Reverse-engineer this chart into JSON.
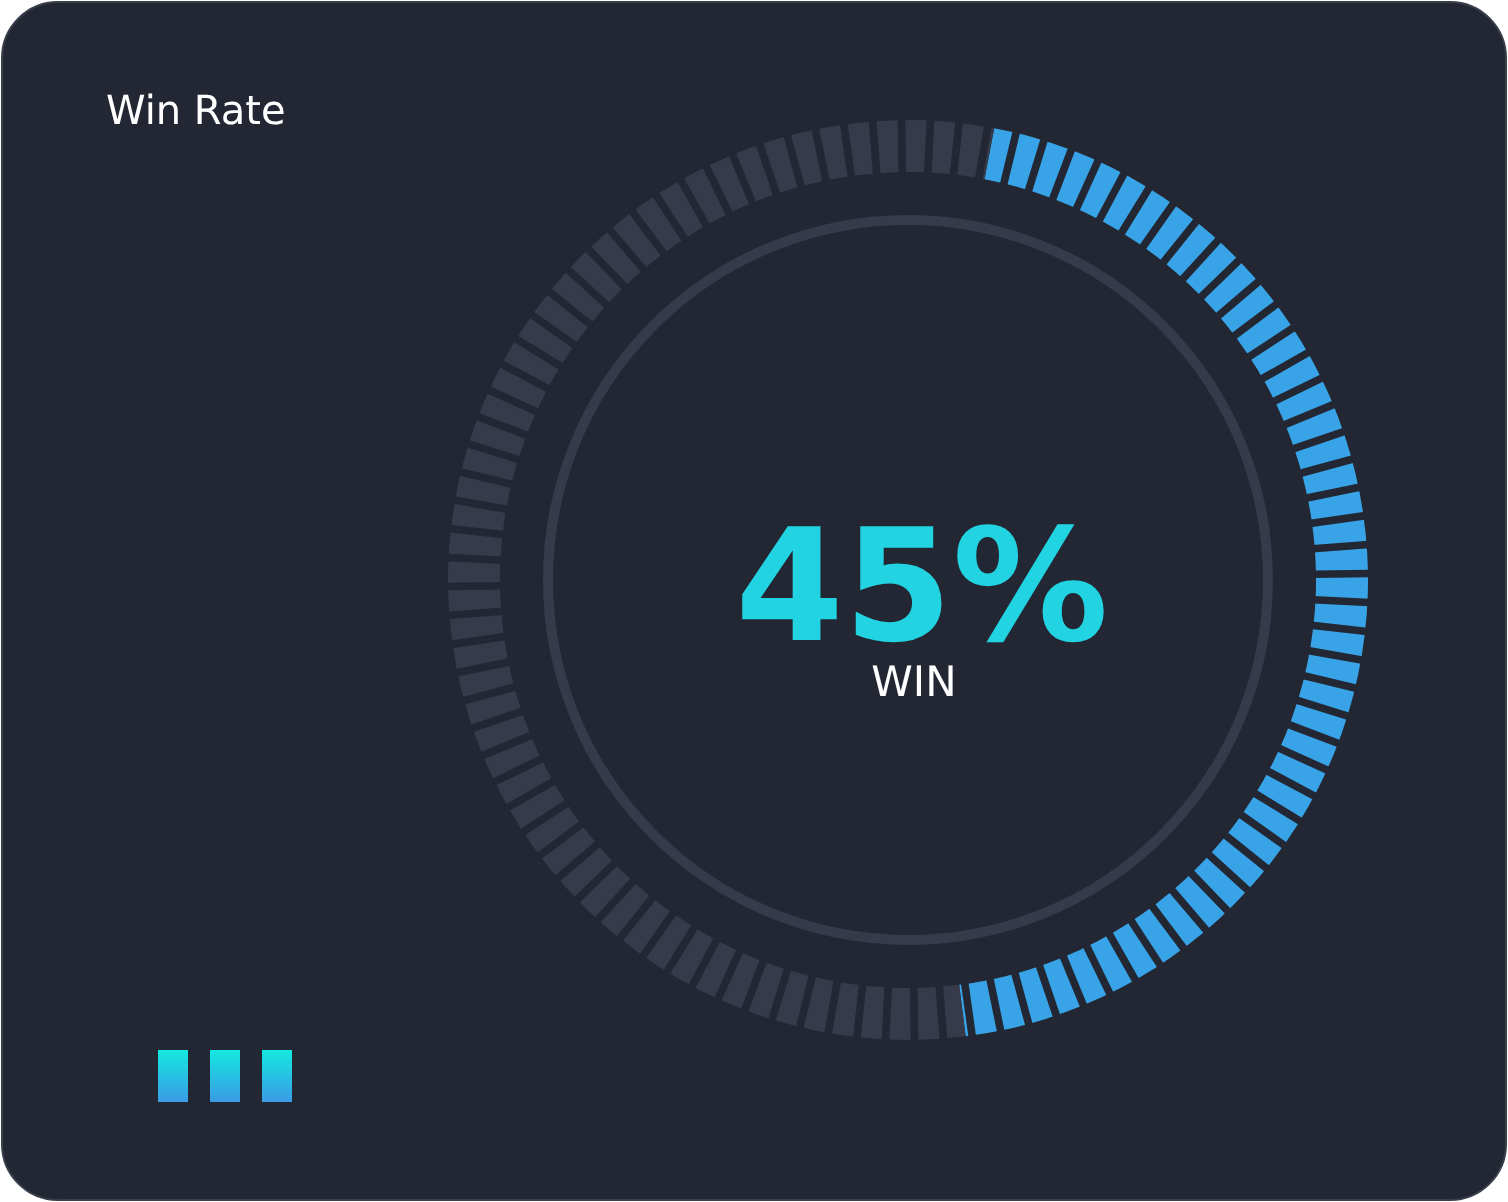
{
  "chart_data": {
    "type": "donut",
    "title": "Win Rate",
    "categories": [
      "WIN",
      null
    ],
    "values": [
      45,
      55
    ],
    "colors": [
      "#38a3e6",
      "#363a4a"
    ],
    "value_labels": [
      "45%",
      null
    ]
  }
}
